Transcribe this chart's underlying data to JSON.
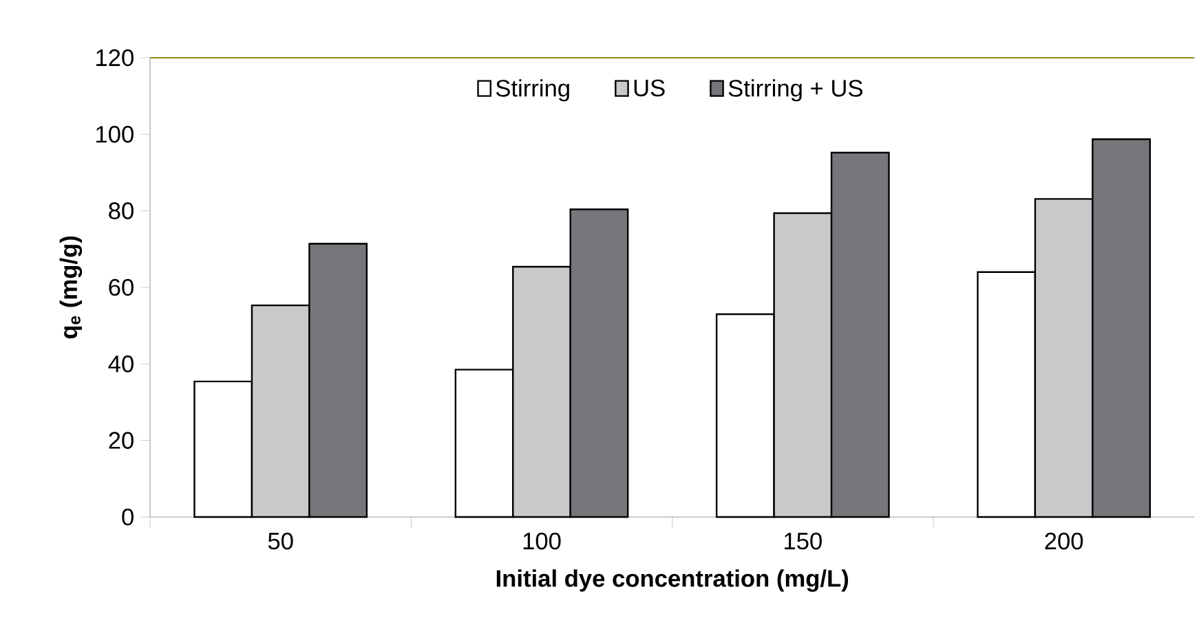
{
  "chart_data": {
    "type": "bar",
    "xlabel": "Initial dye concentration (mg/L)",
    "ylabel": "q$_{e}$ (mg/g)",
    "categories": [
      "50",
      "100",
      "150",
      "200"
    ],
    "series": [
      {
        "name": "Stirring",
        "color": "#ffffff",
        "values": [
          35.4,
          38.5,
          53,
          64
        ]
      },
      {
        "name": "US",
        "color": "#c8c9cb",
        "values": [
          55.3,
          65.4,
          79.4,
          83.1
        ]
      },
      {
        "name": "Stirring + US",
        "color": "#76777b",
        "values": [
          71.4,
          80.4,
          95.2,
          98.7
        ]
      }
    ],
    "ylim": [
      0,
      120
    ],
    "yticks": [
      0,
      20,
      40,
      60,
      80,
      100,
      120
    ],
    "grid": false,
    "legend": "top"
  }
}
